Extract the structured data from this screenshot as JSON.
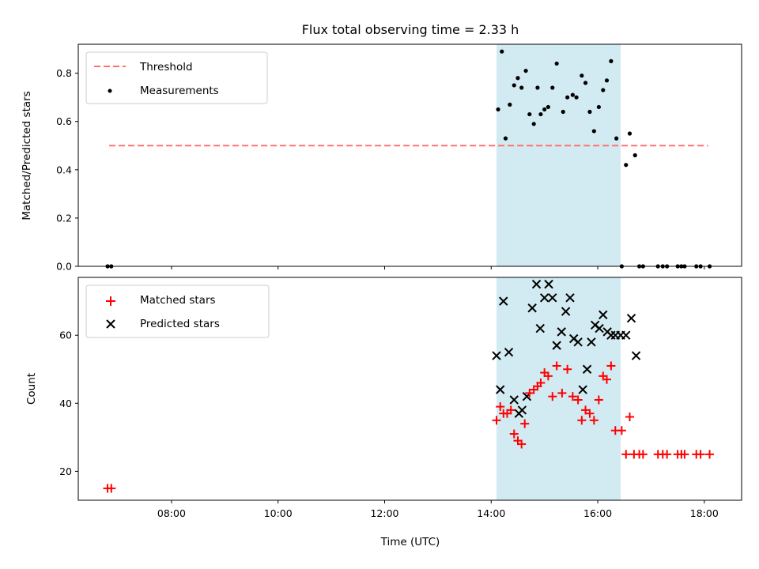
{
  "colors": {
    "threshold": "#ff7070",
    "measurements": "#000000",
    "matched": "#ff0000",
    "predicted": "#000000",
    "span_fill": "#add8e6"
  },
  "chart_data": {
    "title": "Flux total observing time = 2.33 h",
    "shared_x": {
      "label": "Time (UTC)",
      "unit": "hours UTC",
      "range": [
        6.25,
        18.7
      ],
      "ticks": [
        8,
        10,
        12,
        14,
        16,
        18
      ],
      "tick_labels": [
        "08:00",
        "10:00",
        "12:00",
        "14:00",
        "16:00",
        "18:00"
      ]
    },
    "highlight_span": {
      "start": 14.1,
      "end": 16.43
    },
    "grid": false,
    "charts": [
      {
        "type": "scatter",
        "ylabel": "Matched/Predicted stars",
        "ylim": [
          0.0,
          0.92
        ],
        "yticks": [
          0.0,
          0.2,
          0.4,
          0.6,
          0.8
        ],
        "ytick_labels": [
          "0.0",
          "0.2",
          "0.4",
          "0.6",
          "0.8"
        ],
        "legend_position": "top-left",
        "threshold": {
          "name": "Threshold",
          "y": 0.5,
          "x_range": [
            6.83,
            18.07
          ]
        },
        "series": [
          {
            "name": "Measurements",
            "x": [
              6.8,
              6.87,
              14.13,
              14.2,
              14.27,
              14.35,
              14.43,
              14.5,
              14.57,
              14.65,
              14.72,
              14.8,
              14.87,
              14.93,
              15.0,
              15.07,
              15.15,
              15.23,
              15.35,
              15.43,
              15.53,
              15.6,
              15.7,
              15.77,
              15.85,
              15.93,
              16.02,
              16.1,
              16.17,
              16.25,
              16.35,
              16.45,
              16.53,
              16.6,
              16.7,
              16.78,
              16.85,
              17.13,
              17.22,
              17.3,
              17.5,
              17.57,
              17.63,
              17.85,
              17.93,
              18.1
            ],
            "y": [
              0.0,
              0.0,
              0.65,
              0.89,
              0.53,
              0.67,
              0.75,
              0.78,
              0.74,
              0.81,
              0.63,
              0.59,
              0.74,
              0.63,
              0.65,
              0.66,
              0.74,
              0.84,
              0.64,
              0.7,
              0.71,
              0.7,
              0.79,
              0.76,
              0.64,
              0.56,
              0.66,
              0.73,
              0.77,
              0.85,
              0.53,
              0.0,
              0.42,
              0.55,
              0.46,
              0.0,
              0.0,
              0.0,
              0.0,
              0.0,
              0.0,
              0.0,
              0.0,
              0.0,
              0.0,
              0.0
            ]
          }
        ]
      },
      {
        "type": "scatter",
        "ylabel": "Count",
        "ylim": [
          11.5,
          77
        ],
        "yticks": [
          20,
          40,
          60
        ],
        "ytick_labels": [
          "20",
          "40",
          "60"
        ],
        "legend_position": "top-left",
        "series": [
          {
            "name": "Matched stars",
            "marker": "plus",
            "x": [
              6.8,
              6.87,
              14.1,
              14.17,
              14.23,
              14.3,
              14.37,
              14.43,
              14.5,
              14.57,
              14.63,
              14.72,
              14.8,
              14.87,
              14.93,
              15.0,
              15.07,
              15.15,
              15.23,
              15.33,
              15.43,
              15.53,
              15.63,
              15.7,
              15.77,
              15.85,
              15.93,
              16.02,
              16.1,
              16.17,
              16.25,
              16.33,
              16.45,
              16.53,
              16.6,
              16.68,
              16.78,
              16.85,
              17.13,
              17.22,
              17.3,
              17.5,
              17.57,
              17.63,
              17.85,
              17.93,
              18.1
            ],
            "y": [
              15,
              15,
              35,
              39,
              37,
              37,
              38,
              31,
              29,
              28,
              34,
              43,
              44,
              45,
              46,
              49,
              48,
              42,
              51,
              43,
              50,
              42,
              41,
              35,
              38,
              37,
              35,
              41,
              48,
              47,
              51,
              32,
              32,
              25,
              36,
              25,
              25,
              25,
              25,
              25,
              25,
              25,
              25,
              25,
              25,
              25,
              25
            ]
          },
          {
            "name": "Predicted stars",
            "marker": "x",
            "x": [
              14.1,
              14.17,
              14.23,
              14.33,
              14.43,
              14.52,
              14.58,
              14.67,
              14.77,
              14.85,
              14.92,
              15.0,
              15.08,
              15.15,
              15.23,
              15.32,
              15.4,
              15.48,
              15.55,
              15.63,
              15.72,
              15.8,
              15.88,
              15.95,
              16.03,
              16.1,
              16.18,
              16.25,
              16.33,
              16.43,
              16.53,
              16.63,
              16.72
            ],
            "y": [
              54,
              44,
              70,
              55,
              41,
              37,
              38,
              42,
              68,
              75,
              62,
              71,
              75,
              71,
              57,
              61,
              67,
              71,
              59,
              58,
              44,
              50,
              58,
              63,
              62,
              66,
              61,
              60,
              60,
              60,
              60,
              65,
              54
            ]
          }
        ]
      }
    ]
  }
}
